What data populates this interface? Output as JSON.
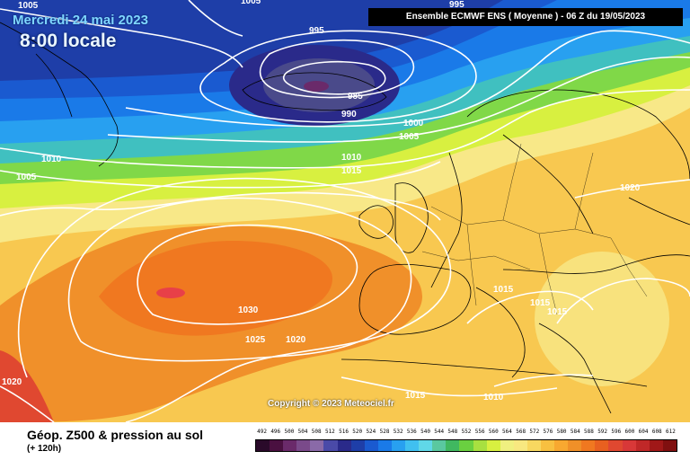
{
  "header": {
    "date": "Mercredi 24 mai 2023",
    "time": "8:00 locale",
    "ensemble": "Ensemble ECMWF ENS  ( Moyenne )  -  06 Z du 19/05/2023"
  },
  "footer": {
    "title": "Géop. Z500 & pression au sol",
    "subtitle": "(+ 120h)",
    "copyright": "Copyright © 2023 Meteociel.fr"
  },
  "isobar_labels": [
    "1005",
    "995",
    "985",
    "990",
    "1000",
    "1005",
    "1010",
    "1015",
    "1010",
    "1005",
    "1020",
    "1015",
    "1015",
    "1015",
    "1030",
    "1025",
    "1020",
    "1020",
    "1015",
    "1010",
    "1005",
    "995"
  ],
  "legend_scale": {
    "labels": [
      "492",
      "496",
      "500",
      "504",
      "508",
      "512",
      "516",
      "520",
      "524",
      "528",
      "532",
      "536",
      "540",
      "544",
      "548",
      "552",
      "556",
      "560",
      "564",
      "568",
      "572",
      "576",
      "580",
      "584",
      "588",
      "592",
      "596",
      "600",
      "604",
      "608",
      "612"
    ],
    "colors": [
      "#2a0a2a",
      "#4a1040",
      "#6a2a6a",
      "#7a4a8a",
      "#8a6aa8",
      "#4a4aa8",
      "#2a2a8a",
      "#1e3ea8",
      "#1a5ad0",
      "#1a7ae8",
      "#28a0f0",
      "#40c0f0",
      "#60d8e8",
      "#5ac8a0",
      "#40b860",
      "#6ad040",
      "#a8e040",
      "#d8f040",
      "#f0f080",
      "#f8e880",
      "#f8d860",
      "#f8c040",
      "#f8a830",
      "#f09028",
      "#f07820",
      "#e86020",
      "#e04830",
      "#d83838",
      "#c02828",
      "#a01818",
      "#801010"
    ]
  },
  "colors": {
    "low_core": "#3a0a3a",
    "arctic_blue": "#1a3ad8",
    "greenland_blue": "#2a6ae8",
    "high_core": "#e84048",
    "background_yellow": "#f8e070"
  }
}
